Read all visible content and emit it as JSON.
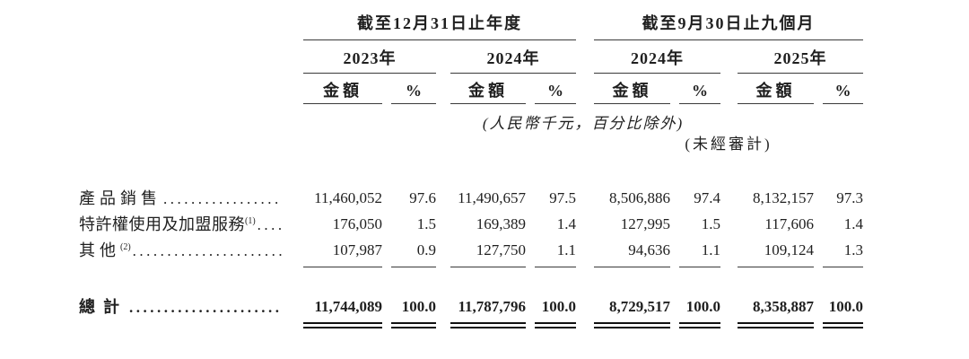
{
  "table": {
    "period_headers": [
      "截至12月31日止年度",
      "截至9月30日止九個月"
    ],
    "year_headers": [
      "2023年",
      "2024年",
      "2024年",
      "2025年"
    ],
    "column_headers": {
      "amount": "金額",
      "percent": "%"
    },
    "notes": {
      "currency_note": "(人民幣千元，百分比除外)",
      "unaudited_note": "(未經審計)"
    },
    "rows": [
      {
        "label": "產品銷售",
        "sup": "",
        "values": [
          "11,460,052",
          "97.6",
          "11,490,657",
          "97.5",
          "8,506,886",
          "97.4",
          "8,132,157",
          "97.3"
        ]
      },
      {
        "label": "特許權使用及加盟服務",
        "sup": "(1)",
        "values": [
          "176,050",
          "1.5",
          "169,389",
          "1.4",
          "127,995",
          "1.5",
          "117,606",
          "1.4"
        ]
      },
      {
        "label": "其他",
        "sup": "(2)",
        "values": [
          "107,987",
          "0.9",
          "127,750",
          "1.1",
          "94,636",
          "1.1",
          "109,124",
          "1.3"
        ]
      }
    ],
    "total_row": {
      "label": "總計",
      "values": [
        "11,744,089",
        "100.0",
        "11,787,796",
        "100.0",
        "8,729,517",
        "100.0",
        "8,358,887",
        "100.0"
      ]
    },
    "leader_dots": "........................................................"
  },
  "colors": {
    "text": "#1f1f1f",
    "rule": "#3a3a3a",
    "rule_total": "#101010",
    "background": "#ffffff"
  }
}
